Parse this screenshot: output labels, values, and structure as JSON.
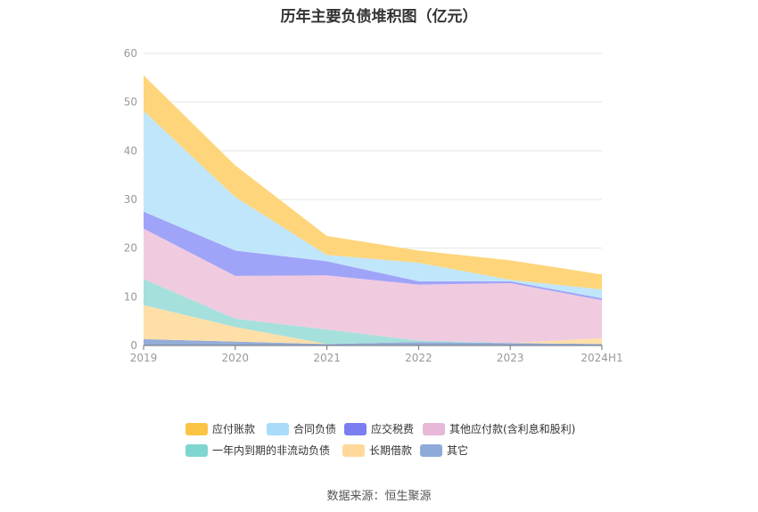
{
  "chart_data": {
    "type": "area",
    "stacked": true,
    "title": "历年主要负债堆积图（亿元）",
    "x": [
      "2019",
      "2020",
      "2021",
      "2022",
      "2023",
      "2024H1"
    ],
    "ylim": [
      0,
      60
    ],
    "yticks": [
      0,
      10,
      20,
      30,
      40,
      50,
      60
    ],
    "grid": true,
    "legend_position": "bottom",
    "series": [
      {
        "name": "其它",
        "color": "#94acd8",
        "values": [
          1.3,
          0.8,
          0.3,
          0.7,
          0.5,
          0.3
        ]
      },
      {
        "name": "长期借款",
        "color": "#ffdfa8",
        "values": [
          7.0,
          3.0,
          0.0,
          0.0,
          0.0,
          1.2
        ]
      },
      {
        "name": "一年内到期的非流动负债",
        "color": "#a6e0dc",
        "values": [
          5.4,
          1.7,
          3.0,
          0.3,
          0.0,
          0.0
        ]
      },
      {
        "name": "其他应付款(含利息和股利)",
        "color": "#f0cbe0",
        "values": [
          10.3,
          8.8,
          11.1,
          11.5,
          12.3,
          7.8
        ]
      },
      {
        "name": "应交税费",
        "color": "#a0a4f8",
        "values": [
          3.5,
          5.2,
          2.9,
          0.7,
          0.4,
          0.4
        ]
      },
      {
        "name": "合同负债",
        "color": "#c0e6fb",
        "values": [
          20.7,
          11.0,
          1.3,
          3.8,
          0.3,
          1.8
        ]
      },
      {
        "name": "应付账款",
        "color": "#fed57a",
        "values": [
          7.3,
          6.5,
          3.9,
          2.5,
          4.0,
          3.1
        ]
      }
    ],
    "legend": [
      {
        "name": "应付账款",
        "color": "#fbc445"
      },
      {
        "name": "合同负债",
        "color": "#a8dcfa"
      },
      {
        "name": "应交税费",
        "color": "#7a7ef0"
      },
      {
        "name": "其他应付款(含利息和股利)",
        "color": "#e7b8d8"
      },
      {
        "name": "一年内到期的非流动负债",
        "color": "#7fd5cf"
      },
      {
        "name": "长期借款",
        "color": "#ffd89a"
      },
      {
        "name": "其它",
        "color": "#8eaad8"
      }
    ]
  },
  "source_text": "数据来源：恒生聚源"
}
